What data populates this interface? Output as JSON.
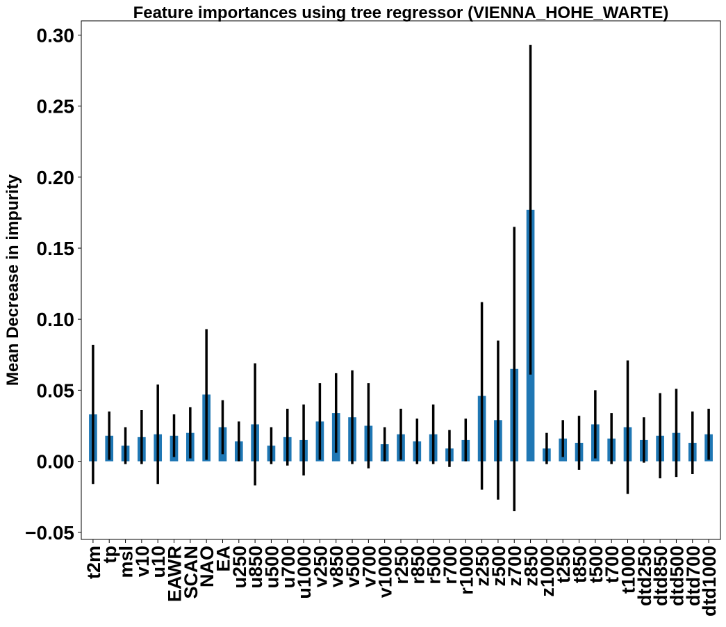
{
  "chart_data": {
    "type": "bar",
    "title": "Feature importances using tree regressor (VIENNA_HOHE_WARTE)",
    "xlabel": "",
    "ylabel": "Mean Decrease in impurity",
    "ylim": [
      -0.055,
      0.31
    ],
    "yticks": [
      -0.05,
      0.0,
      0.05,
      0.1,
      0.15,
      0.2,
      0.25,
      0.3
    ],
    "ytick_labels": [
      "−0.05",
      "0.00",
      "0.05",
      "0.10",
      "0.15",
      "0.20",
      "0.25",
      "0.30"
    ],
    "grid": false,
    "bar_color": "#1f77b4",
    "error_color": "#000000",
    "categories": [
      "t2m",
      "tp",
      "msl",
      "v10",
      "u10",
      "EAWR",
      "SCAN",
      "NAO",
      "EA",
      "u250",
      "u850",
      "u500",
      "u700",
      "u1000",
      "v250",
      "v850",
      "v500",
      "v700",
      "v1000",
      "r250",
      "r850",
      "r500",
      "r700",
      "r1000",
      "z250",
      "z500",
      "z700",
      "z850",
      "z1000",
      "t250",
      "t850",
      "t500",
      "t700",
      "t1000",
      "dtd250",
      "dtd850",
      "dtd500",
      "dtd700",
      "dtd1000"
    ],
    "values": [
      0.033,
      0.018,
      0.011,
      0.017,
      0.019,
      0.018,
      0.02,
      0.047,
      0.024,
      0.014,
      0.026,
      0.011,
      0.017,
      0.015,
      0.028,
      0.034,
      0.031,
      0.025,
      0.012,
      0.019,
      0.014,
      0.019,
      0.009,
      0.015,
      0.046,
      0.029,
      0.065,
      0.177,
      0.009,
      0.016,
      0.013,
      0.026,
      0.016,
      0.024,
      0.015,
      0.018,
      0.02,
      0.013,
      0.019
    ],
    "errors": [
      0.049,
      0.017,
      0.013,
      0.019,
      0.035,
      0.015,
      0.018,
      0.046,
      0.019,
      0.014,
      0.043,
      0.013,
      0.02,
      0.025,
      0.027,
      0.028,
      0.033,
      0.03,
      0.012,
      0.018,
      0.016,
      0.021,
      0.013,
      0.015,
      0.066,
      0.056,
      0.1,
      0.116,
      0.011,
      0.013,
      0.019,
      0.024,
      0.018,
      0.047,
      0.016,
      0.03,
      0.031,
      0.022,
      0.018
    ]
  }
}
